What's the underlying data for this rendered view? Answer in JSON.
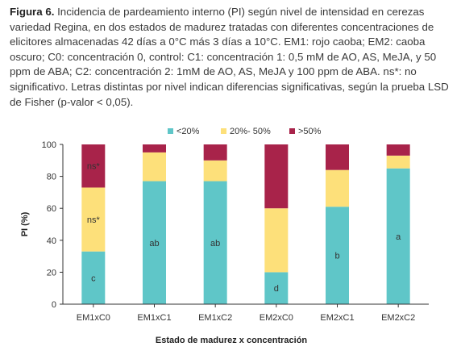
{
  "caption": {
    "lead": "Figura 6.",
    "text": " Incidencia de pardeamiento interno (PI) según nivel de intensidad en cerezas variedad Regina, en dos estados de madurez tratadas con diferentes concentraciones de elicitores almacenadas 42 días a 0°C más 3 días a 10°C. EM1: rojo caoba; EM2: caoba oscuro; C0: concentración 0, control: C1: concentración 1: 0,5 mM de AO, AS, MeJA, y 50 ppm de ABA; C2: concentración 2: 1mM de AO, AS, MeJA y 100 ppm de ABA. ns*: no significativo. Letras distintas por nivel indican diferencias significativas, según la prueba LSD de Fisher (p-valor < 0,05)."
  },
  "chart_data": {
    "type": "bar",
    "stacked": true,
    "categories": [
      "EM1xC0",
      "EM1xC1",
      "EM1xC2",
      "EM2xC0",
      "EM2xC1",
      "EM2xC2"
    ],
    "series": [
      {
        "name": "<20%",
        "color": "#5fc6c8",
        "values": [
          33,
          77,
          77,
          20,
          61,
          85
        ],
        "labels": [
          "c",
          "ab",
          "ab",
          "d",
          "b",
          "a"
        ]
      },
      {
        "name": "20%- 50%",
        "color": "#fde07a",
        "values": [
          40,
          18,
          13,
          40,
          23,
          8
        ],
        "labels": [
          "ns*",
          "",
          "",
          "",
          "",
          ""
        ]
      },
      {
        "name": ">50%",
        "color": "#a8234a",
        "values": [
          27,
          5,
          10,
          40,
          16,
          7
        ],
        "labels": [
          "ns*",
          "",
          "",
          "",
          "",
          ""
        ]
      }
    ],
    "title": "",
    "xlabel": "Estado de madurez x concentración",
    "ylabel": "PI (%)",
    "ylim": [
      0,
      100
    ],
    "yticks": [
      0,
      20,
      40,
      60,
      80,
      100
    ],
    "grid": false,
    "legend": "top-center"
  }
}
